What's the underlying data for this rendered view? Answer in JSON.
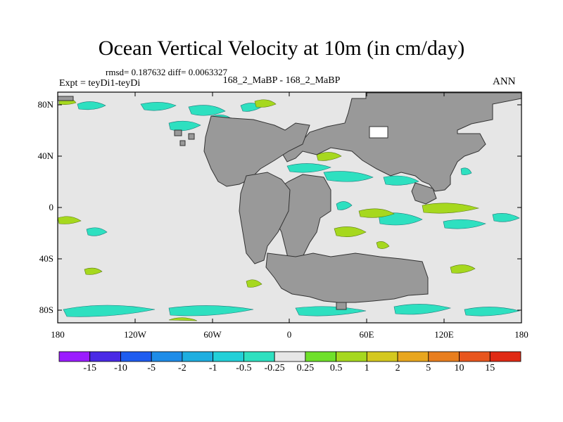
{
  "figure": {
    "title": "Ocean Vertical Velocity at 10m (in cm/day)",
    "stats": "rmsd= 0.187632  diff= 0.0063327",
    "experiment": "Expt = teyDi1-teyDi",
    "case_label": "168_2_MaBP - 168_2_MaBP",
    "season": "ANN"
  },
  "axes": {
    "lat_labels": [
      "80N",
      "40N",
      "0",
      "40S",
      "80S"
    ],
    "lon_labels": [
      "180",
      "120W",
      "60W",
      "0",
      "60E",
      "120E",
      "180"
    ]
  },
  "colorbar": {
    "labels": [
      "-15",
      "-10",
      "-5",
      "-2",
      "-1",
      "-0.5",
      "-0.25",
      "0.25",
      "0.5",
      "1",
      "2",
      "5",
      "10",
      "15"
    ],
    "colors": [
      "#9b1cff",
      "#4a2ae6",
      "#1e5cf0",
      "#1e8ce8",
      "#1eaee0",
      "#22d0d8",
      "#2ee0c0",
      "#e6e6e6",
      "#6fe02a",
      "#a6d81e",
      "#d4c81e",
      "#e8a61e",
      "#e87e1e",
      "#e8561e",
      "#e02a14"
    ]
  },
  "colors": {
    "land": "#999999",
    "ocean": "#e6e6e6",
    "positive_weak": "#6fe02a",
    "positive_mid": "#b4d61e",
    "negative_weak": "#2ee0c0",
    "negative_mid": "#22c8e0"
  }
}
